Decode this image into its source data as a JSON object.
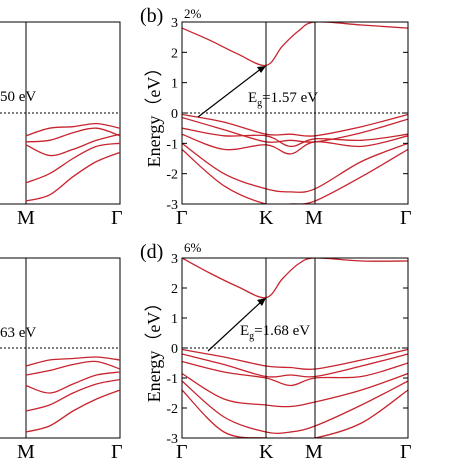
{
  "panels": {
    "a": {
      "label": "",
      "strain": "",
      "gap_text": "50 eV"
    },
    "b": {
      "label": "(b)",
      "strain": "2%",
      "gap_text": "E",
      "gap_sub": "g",
      "gap_value": "=1.57 eV"
    },
    "c": {
      "label": "",
      "strain": "",
      "gap_text": "63 eV"
    },
    "d": {
      "label": "(d)",
      "strain": "6%",
      "gap_text": "E",
      "gap_sub": "g",
      "gap_value": "=1.68 eV"
    }
  },
  "axes": {
    "ylabel": "Energy（eV）",
    "y_ticks": [
      "3",
      "2",
      "1",
      "0",
      "-1",
      "-2",
      "-3"
    ],
    "x_ticks_full": [
      "Γ",
      "K",
      "M",
      "Γ"
    ],
    "x_ticks_partial": [
      "M",
      "Γ"
    ]
  },
  "colors": {
    "band": "#c8242e",
    "axis": "#000000",
    "fermi": "#000000"
  },
  "chart_data": [
    {
      "type": "line",
      "panel": "(b)",
      "title": "2%",
      "ylabel": "Energy（eV）",
      "ylim": [
        -3,
        3
      ],
      "x_path": [
        "Γ",
        "K",
        "M",
        "Γ"
      ],
      "band_gap_eV": 1.57,
      "fermi_level": 0,
      "grid": false,
      "series": [
        {
          "name": "",
          "x": [
            0,
            0.33,
            0.66,
            1.0,
            1.33,
            1.66,
            2.0,
            2.5,
            3.0
          ],
          "values": [
            2.8,
            2.4,
            1.95,
            1.57,
            2.2,
            2.7,
            3.0,
            2.9,
            2.8
          ]
        },
        {
          "name": "",
          "x": [
            0,
            0.5,
            1.0,
            1.5,
            2.0,
            2.5,
            3.0
          ],
          "values": [
            -0.05,
            -0.3,
            -0.7,
            -0.7,
            -0.75,
            -0.45,
            -0.05
          ]
        },
        {
          "name": "",
          "x": [
            0,
            0.5,
            1.0,
            1.5,
            2.0,
            2.5,
            3.0
          ],
          "values": [
            -0.15,
            -0.55,
            -0.95,
            -0.9,
            -0.95,
            -0.65,
            -0.2
          ]
        },
        {
          "name": "",
          "x": [
            0,
            0.5,
            1.0,
            1.5,
            2.0,
            2.5,
            3.0
          ],
          "values": [
            -0.5,
            -0.75,
            -0.75,
            -1.1,
            -0.85,
            -0.9,
            -0.7
          ]
        },
        {
          "name": "",
          "x": [
            0,
            0.5,
            1.0,
            1.5,
            2.0,
            2.5,
            3.0
          ],
          "values": [
            -0.7,
            -1.2,
            -1.05,
            -1.35,
            -0.95,
            -1.1,
            -0.75
          ]
        },
        {
          "name": "",
          "x": [
            0,
            0.5,
            1.0,
            1.5,
            2.0,
            2.5,
            3.0
          ],
          "values": [
            -1.0,
            -2.0,
            -2.5,
            -2.6,
            -2.5,
            -1.6,
            -1.0
          ]
        },
        {
          "name": "",
          "x": [
            0,
            0.5,
            1.0,
            1.5,
            2.0,
            2.5,
            3.0
          ],
          "values": [
            -1.2,
            -2.4,
            -3.0,
            -3.0,
            -2.9,
            -2.1,
            -1.2
          ]
        }
      ]
    },
    {
      "type": "line",
      "panel": "(d)",
      "title": "6%",
      "ylabel": "Energy（eV）",
      "ylim": [
        -3,
        3
      ],
      "x_path": [
        "Γ",
        "K",
        "M",
        "Γ"
      ],
      "band_gap_eV": 1.68,
      "fermi_level": 0,
      "grid": false,
      "series": [
        {
          "name": "",
          "x": [
            0,
            0.33,
            0.66,
            1.0,
            1.33,
            1.66,
            2.0,
            2.5,
            3.0
          ],
          "values": [
            3.0,
            2.5,
            2.05,
            1.68,
            2.3,
            2.8,
            3.0,
            2.9,
            2.9
          ]
        },
        {
          "name": "",
          "x": [
            0,
            0.5,
            1.0,
            1.5,
            2.0,
            2.5,
            3.0
          ],
          "values": [
            -0.05,
            -0.3,
            -0.6,
            -0.65,
            -0.7,
            -0.4,
            -0.05
          ]
        },
        {
          "name": "",
          "x": [
            0,
            0.5,
            1.0,
            1.5,
            2.0,
            2.5,
            3.0
          ],
          "values": [
            -0.2,
            -0.55,
            -0.95,
            -0.9,
            -0.95,
            -0.6,
            -0.2
          ]
        },
        {
          "name": "",
          "x": [
            0,
            0.5,
            1.0,
            1.5,
            2.0,
            2.5,
            3.0
          ],
          "values": [
            -0.45,
            -0.8,
            -1.0,
            -1.25,
            -1.0,
            -0.95,
            -0.5
          ]
        },
        {
          "name": "",
          "x": [
            0,
            0.5,
            1.0,
            1.5,
            2.0,
            2.5,
            3.0
          ],
          "values": [
            -0.85,
            -1.7,
            -1.9,
            -1.95,
            -1.8,
            -1.4,
            -0.85
          ]
        },
        {
          "name": "",
          "x": [
            0,
            0.5,
            1.0,
            1.5,
            2.0,
            2.5,
            3.0
          ],
          "values": [
            -1.1,
            -2.3,
            -2.8,
            -2.8,
            -2.6,
            -1.9,
            -1.1
          ]
        },
        {
          "name": "",
          "x": [
            0,
            0.5,
            1.0,
            1.5,
            2.0,
            2.5,
            3.0
          ],
          "values": [
            -1.4,
            -2.8,
            -3.0,
            -3.0,
            -3.0,
            -2.5,
            -1.4
          ]
        }
      ]
    },
    {
      "type": "line",
      "panel": "(a)",
      "ylim": [
        -3,
        3
      ],
      "x_path": [
        "M",
        "Γ"
      ],
      "fermi_level": 0,
      "series": [
        {
          "name": "",
          "x": [
            2.0,
            2.25,
            2.5,
            2.75,
            3.0
          ],
          "values": [
            -0.75,
            -0.5,
            -0.45,
            -0.35,
            -0.5
          ]
        },
        {
          "name": "",
          "x": [
            2.0,
            2.25,
            2.5,
            2.75,
            3.0
          ],
          "values": [
            -0.95,
            -0.9,
            -0.65,
            -0.5,
            -0.75
          ]
        },
        {
          "name": "",
          "x": [
            2.0,
            2.25,
            2.5,
            2.75,
            3.0
          ],
          "values": [
            -1.05,
            -1.4,
            -1.2,
            -0.9,
            -0.7
          ]
        },
        {
          "name": "",
          "x": [
            2.0,
            2.25,
            2.5,
            2.75,
            3.0
          ],
          "values": [
            -2.3,
            -2.0,
            -1.5,
            -1.1,
            -1.0
          ]
        },
        {
          "name": "",
          "x": [
            2.0,
            2.25,
            2.5,
            2.75,
            3.0
          ],
          "values": [
            -2.9,
            -2.7,
            -2.1,
            -1.6,
            -1.3
          ]
        }
      ]
    },
    {
      "type": "line",
      "panel": "(c)",
      "ylim": [
        -3,
        3
      ],
      "x_path": [
        "M",
        "Γ"
      ],
      "fermi_level": 0,
      "series": [
        {
          "name": "",
          "x": [
            2.0,
            2.25,
            2.5,
            2.75,
            3.0
          ],
          "values": [
            -0.6,
            -0.4,
            -0.35,
            -0.3,
            -0.4
          ]
        },
        {
          "name": "",
          "x": [
            2.0,
            2.25,
            2.5,
            2.75,
            3.0
          ],
          "values": [
            -0.9,
            -0.75,
            -0.55,
            -0.45,
            -0.7
          ]
        },
        {
          "name": "",
          "x": [
            2.0,
            2.25,
            2.5,
            2.75,
            3.0
          ],
          "values": [
            -1.25,
            -1.5,
            -1.2,
            -0.9,
            -0.8
          ]
        },
        {
          "name": "",
          "x": [
            2.0,
            2.25,
            2.5,
            2.75,
            3.0
          ],
          "values": [
            -2.1,
            -1.9,
            -1.5,
            -1.2,
            -1.05
          ]
        },
        {
          "name": "",
          "x": [
            2.0,
            2.25,
            2.5,
            2.75,
            3.0
          ],
          "values": [
            -2.8,
            -2.6,
            -2.1,
            -1.7,
            -1.4
          ]
        }
      ]
    }
  ]
}
